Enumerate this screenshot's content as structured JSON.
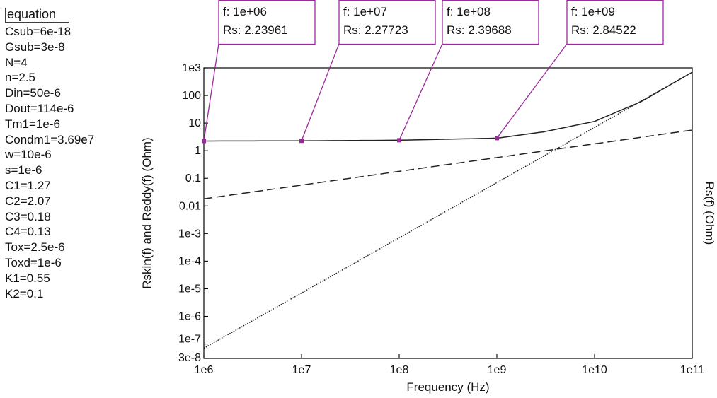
{
  "equation_panel": {
    "title": "equation",
    "lines": [
      "Csub=6e-18",
      "Gsub=3e-8",
      "N=4",
      "n=2.5",
      "Din=50e-6",
      "Dout=114e-6",
      "Tm1=1e-6",
      "Condm1=3.69e7",
      "w=10e-6",
      "s=1e-6",
      "C1=1.27",
      "C2=2.07",
      "C3=0.18",
      "C4=0.13",
      "Tox=2.5e-6",
      "Toxd=1e-6",
      "K1=0.55",
      "K2=0.1"
    ]
  },
  "colors": {
    "marker": "#9b2a9b",
    "series": "#222222",
    "axis": "#000000"
  },
  "chart_data": {
    "type": "line",
    "xlabel": "Frequency (Hz)",
    "ylabel_left": "Rskin(f) and Reddy(f)  (Ohm)",
    "ylabel_right": "Rs(f) (Ohm)",
    "x_scale": "log",
    "y_scale": "log",
    "xlim": [
      1000000.0,
      100000000000.0
    ],
    "ylim": [
      3e-08,
      1000
    ],
    "x_ticks": [
      {
        "value": 1000000.0,
        "label": "1e6"
      },
      {
        "value": 10000000.0,
        "label": "1e7"
      },
      {
        "value": 100000000.0,
        "label": "1e8"
      },
      {
        "value": 1000000000.0,
        "label": "1e9"
      },
      {
        "value": 10000000000.0,
        "label": "1e10"
      },
      {
        "value": 100000000000.0,
        "label": "1e11"
      }
    ],
    "y_ticks": [
      {
        "value": 1000,
        "label": "1e3"
      },
      {
        "value": 100,
        "label": "100"
      },
      {
        "value": 10,
        "label": "10"
      },
      {
        "value": 1,
        "label": "1"
      },
      {
        "value": 0.1,
        "label": "0.1"
      },
      {
        "value": 0.01,
        "label": "0.01"
      },
      {
        "value": 0.001,
        "label": "1e-3"
      },
      {
        "value": 0.0001,
        "label": "1e-4"
      },
      {
        "value": 1e-05,
        "label": "1e-5"
      },
      {
        "value": 1e-06,
        "label": "1e-6"
      },
      {
        "value": 1e-07,
        "label": "1e-7"
      },
      {
        "value": 3e-08,
        "label": "3e-8"
      }
    ],
    "grid": false,
    "series": [
      {
        "style": "solid",
        "x": [
          1000000.0,
          10000000.0,
          100000000.0,
          1000000000.0,
          3000000000.0,
          10000000000.0,
          30000000000.0,
          100000000000.0
        ],
        "y": [
          2.23961,
          2.27723,
          2.39688,
          2.84522,
          4.8,
          11.5,
          60,
          700
        ]
      },
      {
        "style": "dashed",
        "x": [
          1000000.0,
          100000000000.0
        ],
        "y": [
          0.018,
          5.6
        ]
      },
      {
        "style": "dotted",
        "x": [
          1000000.0,
          10000000.0,
          100000000.0,
          1000000000.0,
          10000000000.0,
          100000000000.0
        ],
        "y": [
          7e-08,
          7e-06,
          0.0007,
          0.07,
          7,
          700
        ]
      }
    ],
    "markers": [
      {
        "x": 1000000.0,
        "y": 2.23961,
        "label_line1": "f: 1e+06",
        "label_line2": "Rs: 2.23961"
      },
      {
        "x": 10000000.0,
        "y": 2.27723,
        "label_line1": "f: 1e+07",
        "label_line2": "Rs: 2.27723"
      },
      {
        "x": 100000000.0,
        "y": 2.39688,
        "label_line1": "f: 1e+08",
        "label_line2": "Rs: 2.39688"
      },
      {
        "x": 1000000000.0,
        "y": 2.84522,
        "label_line1": "f: 1e+09",
        "label_line2": "Rs: 2.84522"
      }
    ]
  }
}
